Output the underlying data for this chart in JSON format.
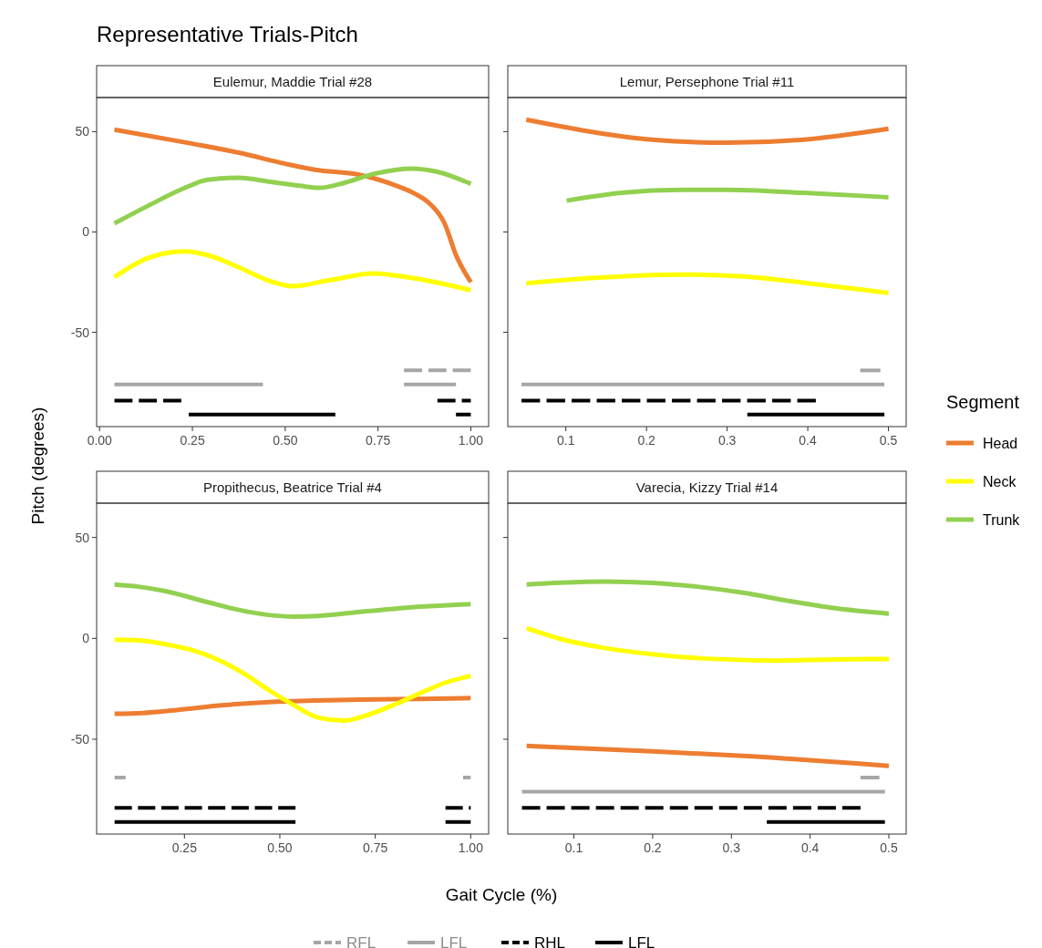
{
  "chart_data": [
    {
      "type": "line",
      "title": "Representative Trials-Pitch",
      "subtitle": "Eulemur, Maddie Trial #28",
      "xlabel": "Gait Cycle (%)",
      "ylabel": "Pitch (degrees)",
      "legend": "right",
      "legend_title": "Segment",
      "xlim": [
        -0.008,
        1.048
      ],
      "ylim": [
        -97,
        67
      ],
      "xticks": [
        {
          "value": 0,
          "label": "0.00"
        },
        {
          "value": 0.25,
          "label": "0.25"
        },
        {
          "value": 0.5,
          "label": "0.50"
        },
        {
          "value": 0.75,
          "label": "0.75"
        },
        {
          "value": 1,
          "label": "1.00"
        }
      ],
      "yticks": [
        -50,
        0,
        50
      ],
      "series": [
        {
          "name": "Head",
          "color": "#ed7d31",
          "x": [
            0.04,
            0.25,
            0.375,
            0.5,
            0.58,
            0.7,
            0.8,
            0.85,
            0.89,
            0.93,
            0.96,
            1.0
          ],
          "values": [
            51,
            44,
            39.5,
            34,
            31,
            28.5,
            23,
            19,
            14,
            4,
            -11.5,
            -25
          ]
        },
        {
          "name": "Neck",
          "color": "#ffff00",
          "x": [
            0.04,
            0.13,
            0.23,
            0.29,
            0.375,
            0.46,
            0.52,
            0.62,
            0.74,
            0.82,
            1.0
          ],
          "values": [
            -22.5,
            -13,
            -9.7,
            -11.5,
            -17.6,
            -24.5,
            -27,
            -24,
            -20.7,
            -22.3,
            -29
          ]
        },
        {
          "name": "Trunk",
          "color": "#92d050",
          "x": [
            0.04,
            0.13,
            0.23,
            0.29,
            0.375,
            0.46,
            0.54,
            0.59,
            0.66,
            0.74,
            0.84,
            0.91,
            1.0
          ],
          "values": [
            4.3,
            13,
            22,
            26,
            27,
            25,
            23,
            22,
            24.5,
            29,
            31.6,
            30,
            24
          ]
        },
        {
          "color": "#a6a6a6",
          "line_style": "dashed",
          "x": [
            0.82,
            1.0
          ],
          "values": [
            -69,
            -69
          ]
        },
        {
          "color": "#a6a6a6",
          "x": [
            0.04,
            0.44,
            0.6,
            0.82,
            0.96
          ],
          "values": [
            -76,
            -76,
            null,
            -76,
            -76
          ]
        },
        {
          "color": "#000000",
          "line_style": "dashed",
          "x": [
            0.04,
            0.22,
            0.5,
            0.91,
            1.0
          ],
          "values": [
            -84,
            -84,
            null,
            -84,
            -84
          ]
        },
        {
          "color": "#000000",
          "x": [
            0.24,
            0.635,
            0.8,
            0.96,
            1.0
          ],
          "values": [
            -91,
            -91,
            null,
            -91,
            -91
          ]
        }
      ]
    },
    {
      "type": "line",
      "subtitle": "Lemur, Persephone Trial #11",
      "tick_labels": "x",
      "xlim": [
        0.028,
        0.522
      ],
      "ylim": [
        -97,
        67
      ],
      "xticks": [
        0.1,
        0.2,
        0.3,
        0.4,
        0.5
      ],
      "yticks": [
        -50,
        0,
        50
      ],
      "series": [
        {
          "color": "#ed7d31",
          "x": [
            0.051,
            0.131,
            0.207,
            0.3,
            0.395,
            0.5
          ],
          "values": [
            56,
            50,
            46,
            44.5,
            46,
            51.4
          ]
        },
        {
          "color": "#ffff00",
          "x": [
            0.051,
            0.131,
            0.244,
            0.32,
            0.395,
            0.5
          ],
          "values": [
            -25.6,
            -23,
            -21.2,
            -22.2,
            -25.3,
            -30.4
          ]
        },
        {
          "color": "#92d050",
          "x": [
            0.101,
            0.169,
            0.244,
            0.3,
            0.395,
            0.5
          ],
          "values": [
            15.6,
            19.5,
            21,
            21,
            19.5,
            17.3
          ]
        },
        {
          "color": "#a6a6a6",
          "line_style": "dashed",
          "x": [
            0.465,
            0.49
          ],
          "values": [
            -69,
            -69
          ]
        },
        {
          "color": "#a6a6a6",
          "x": [
            0.045,
            0.495
          ],
          "values": [
            -76,
            -76
          ]
        },
        {
          "color": "#000000",
          "line_style": "dashed",
          "x": [
            0.045,
            0.41
          ],
          "values": [
            -84,
            -84
          ]
        },
        {
          "color": "#000000",
          "x": [
            0.325,
            0.495
          ],
          "values": [
            -91,
            -91
          ]
        }
      ]
    },
    {
      "type": "line",
      "subtitle": "Propithecus, Beatrice Trial #4",
      "xlim": [
        0.02,
        1.047
      ],
      "ylim": [
        -97,
        67
      ],
      "xticks": [
        {
          "value": 0.25,
          "label": "0.25"
        },
        {
          "value": 0.5,
          "label": "0.50"
        },
        {
          "value": 0.75,
          "label": "0.75"
        },
        {
          "value": 1,
          "label": "1.00"
        }
      ],
      "yticks": [
        -50,
        0,
        50
      ],
      "series": [
        {
          "color": "#ed7d31",
          "x": [
            0.067,
            0.14,
            0.234,
            0.353,
            0.47,
            0.59,
            0.71,
            0.87,
            1.0
          ],
          "values": [
            -37.4,
            -37,
            -35.4,
            -33.1,
            -31.6,
            -30.8,
            -30.4,
            -30,
            -29.6
          ]
        },
        {
          "color": "#ffff00",
          "x": [
            0.067,
            0.13,
            0.2,
            0.266,
            0.33,
            0.41,
            0.47,
            0.536,
            0.6,
            0.667,
            0.734,
            0.806,
            0.87,
            0.933,
            1.0
          ],
          "values": [
            -0.6,
            -1,
            -2.9,
            -5.6,
            -9.9,
            -17.9,
            -25.5,
            -33,
            -39.2,
            -40.8,
            -37.7,
            -32.4,
            -27,
            -22,
            -18.6
          ]
        },
        {
          "color": "#92d050",
          "x": [
            0.067,
            0.13,
            0.2,
            0.31,
            0.39,
            0.47,
            0.536,
            0.6,
            0.71,
            0.87,
            1.0
          ],
          "values": [
            26.7,
            25.6,
            23.4,
            18,
            14.2,
            11.6,
            10.8,
            11.1,
            13.1,
            15.7,
            17
          ]
        },
        {
          "color": "#a6a6a6",
          "line_style": "dashed",
          "x": [
            0.067,
            0.096,
            0.5,
            0.98,
            1.0
          ],
          "values": [
            -69,
            -69,
            null,
            -69,
            -69
          ]
        },
        {
          "color": "#000000",
          "line_style": "dashed",
          "x": [
            0.067,
            0.541,
            0.7,
            0.934,
            1.0
          ],
          "values": [
            -84,
            -84,
            null,
            -84,
            -84
          ]
        },
        {
          "color": "#000000",
          "x": [
            0.067,
            0.541,
            0.7,
            0.934,
            1.0
          ],
          "values": [
            -91,
            -91,
            null,
            -91,
            -91
          ]
        }
      ]
    },
    {
      "type": "line",
      "subtitle": "Varecia, Kizzy Trial #14",
      "tick_labels": "x",
      "legend": "bottom",
      "xlim": [
        0.016,
        0.522
      ],
      "ylim": [
        -97,
        67
      ],
      "xticks": [
        0.1,
        0.2,
        0.3,
        0.4,
        0.5
      ],
      "yticks": [
        -50,
        0,
        50
      ],
      "series": [
        {
          "color": "#ed7d31",
          "x": [
            0.04,
            0.2,
            0.315,
            0.5
          ],
          "values": [
            -53.3,
            -56,
            -58.3,
            -63.2
          ]
        },
        {
          "color": "#ffff00",
          "x": [
            0.04,
            0.083,
            0.141,
            0.2,
            0.277,
            0.354,
            0.43,
            0.5
          ],
          "values": [
            5,
            -0.3,
            -4.9,
            -7.9,
            -10.2,
            -11,
            -10.5,
            -10.2
          ]
        },
        {
          "color": "#92d050",
          "x": [
            0.04,
            0.083,
            0.141,
            0.2,
            0.257,
            0.315,
            0.373,
            0.43,
            0.5
          ],
          "values": [
            26.7,
            27.6,
            28.2,
            27.5,
            25.6,
            22.6,
            18.5,
            15,
            12.2
          ]
        },
        {
          "name": "RFL",
          "color": "#a6a6a6",
          "line_style": "dashed",
          "x": [
            0.464,
            0.488
          ],
          "values": [
            -69,
            -69
          ]
        },
        {
          "name": "LFL",
          "color": "#a6a6a6",
          "x": [
            0.034,
            0.495
          ],
          "values": [
            -76,
            -76
          ]
        },
        {
          "name": "RHL",
          "color": "#000000",
          "line_style": "dashed",
          "x": [
            0.034,
            0.464
          ],
          "values": [
            -84,
            -84
          ]
        },
        {
          "name": "LFL",
          "color": "#000000",
          "x": [
            0.345,
            0.495
          ],
          "values": [
            -91,
            -91
          ]
        }
      ]
    }
  ]
}
